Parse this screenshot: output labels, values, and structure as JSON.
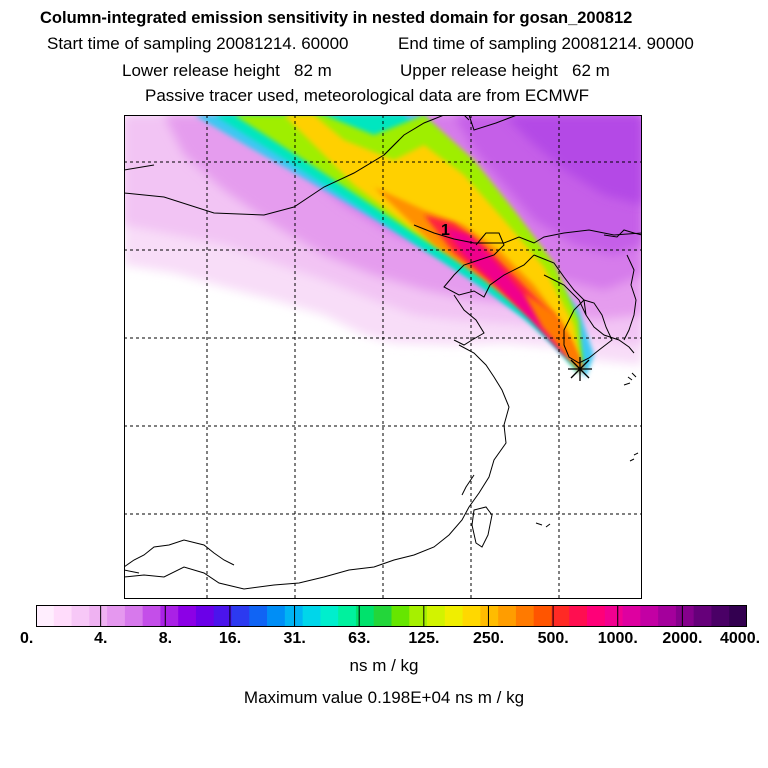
{
  "title": "Column-integrated emission sensitivity in nested domain for gosan_200812",
  "start_label": "Start time of sampling 20081214. 60000",
  "end_label": "End time of sampling 20081214. 90000",
  "lower_label": "Lower release height   82 m",
  "upper_label": "Upper release height   62 m",
  "tracer_label": "Passive tracer used, meteorological data are from ECMWF",
  "map": {
    "point_label": "1",
    "colors": {
      "grid": "#000000",
      "coast": "#000000",
      "background": "#ffffff"
    },
    "release_marker": "asterisk-icon"
  },
  "colorbar": {
    "labels": [
      "0.",
      "4.",
      "8.",
      "16.",
      "31.",
      "63.",
      "125.",
      "250.",
      "500.",
      "1000.",
      "2000.",
      "4000."
    ],
    "colors": [
      "#ffeefe",
      "#ffdcfb",
      "#f7c8f7",
      "#efb2f2",
      "#e598ef",
      "#d779ec",
      "#c44ee9",
      "#aa21e6",
      "#8c00e6",
      "#6b00e8",
      "#4b14ec",
      "#2c3af0",
      "#1064f4",
      "#008ef6",
      "#00b4f4",
      "#00d6ea",
      "#00eecd",
      "#00f19e",
      "#00e26c",
      "#23d63a",
      "#66e600",
      "#a6f000",
      "#d2f300",
      "#f0ee00",
      "#ffd800",
      "#ffbc00",
      "#ff9d00",
      "#ff7a00",
      "#ff5500",
      "#ff2a25",
      "#ff0e50",
      "#ff0078",
      "#f20090",
      "#de00a0",
      "#c300a4",
      "#a4009c",
      "#85008c",
      "#66007a",
      "#4a0066",
      "#330050"
    ],
    "units": "ns m / kg",
    "maximum": "Maximum value  0.198E+04 ns m / kg"
  }
}
